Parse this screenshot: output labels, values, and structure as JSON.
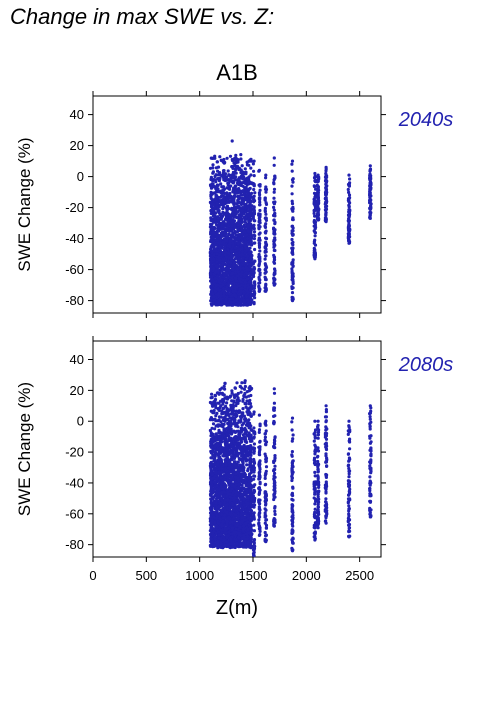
{
  "figure": {
    "title": "Change in max SWE vs. Z:",
    "scenario": "A1B",
    "xlabel": "Z(m)",
    "point_color": "#2222b0"
  },
  "chart_data": [
    {
      "type": "scatter",
      "period": "2040s",
      "ylabel": "SWE Change (%)",
      "xlabel": "",
      "xlim": [
        0,
        2700
      ],
      "ylim": [
        -88,
        52
      ],
      "xticks": [
        0,
        500,
        1000,
        1500,
        2000,
        2500
      ],
      "yticks": [
        -80,
        -60,
        -40,
        -20,
        0,
        20,
        40
      ],
      "xtick_labels_shown": false,
      "groups": [
        {
          "x_range": [
            1100,
            1490
          ],
          "y_range": [
            -83,
            16
          ],
          "dense": true
        },
        {
          "x": 1510,
          "y_range": [
            -82,
            10
          ]
        },
        {
          "x": 1560,
          "y_range": [
            -74,
            4
          ]
        },
        {
          "x": 1620,
          "y_range": [
            -74,
            1
          ]
        },
        {
          "x": 1700,
          "y_range": [
            -70,
            12
          ]
        },
        {
          "x": 1870,
          "y_range": [
            -80,
            10
          ]
        },
        {
          "x": 2080,
          "y_range": [
            -53,
            2
          ]
        },
        {
          "x": 2110,
          "y_range": [
            -28,
            1
          ]
        },
        {
          "x": 2185,
          "y_range": [
            -29,
            6
          ]
        },
        {
          "x": 2400,
          "y_range": [
            -43,
            1
          ]
        },
        {
          "x": 2600,
          "y_range": [
            -27,
            7
          ]
        }
      ],
      "outliers": [
        {
          "x": 1305,
          "y": 23
        }
      ]
    },
    {
      "type": "scatter",
      "period": "2080s",
      "ylabel": "SWE Change (%)",
      "xlabel": "Z(m)",
      "xlim": [
        0,
        2700
      ],
      "ylim": [
        -88,
        52
      ],
      "xticks": [
        0,
        500,
        1000,
        1500,
        2000,
        2500
      ],
      "yticks": [
        -80,
        -60,
        -40,
        -20,
        0,
        20,
        40
      ],
      "xtick_labels_shown": true,
      "groups": [
        {
          "x_range": [
            1100,
            1490
          ],
          "y_range": [
            -82,
            27
          ],
          "dense": true
        },
        {
          "x": 1510,
          "y_range": [
            -87,
            6
          ]
        },
        {
          "x": 1560,
          "y_range": [
            -74,
            4
          ]
        },
        {
          "x": 1620,
          "y_range": [
            -78,
            0
          ]
        },
        {
          "x": 1700,
          "y_range": [
            -68,
            21
          ]
        },
        {
          "x": 1870,
          "y_range": [
            -84,
            2
          ]
        },
        {
          "x": 2080,
          "y_range": [
            -77,
            0
          ]
        },
        {
          "x": 2110,
          "y_range": [
            -69,
            0
          ]
        },
        {
          "x": 2185,
          "y_range": [
            -66,
            10
          ]
        },
        {
          "x": 2400,
          "y_range": [
            -75,
            0
          ]
        },
        {
          "x": 2600,
          "y_range": [
            -62,
            10
          ]
        }
      ],
      "outliers": []
    }
  ]
}
